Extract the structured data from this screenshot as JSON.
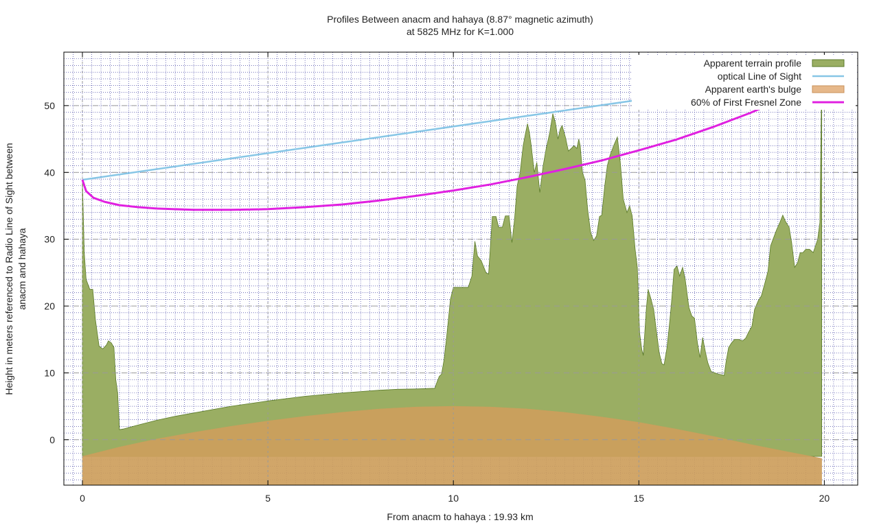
{
  "chart_data": {
    "type": "area",
    "title": "Profiles Between anacm and hahaya (8.87° magnetic azimuth)",
    "subtitle": "at 5825 MHz for K=1.000",
    "xlabel": "From anacm to hahaya : 19.93 km",
    "ylabel_line1": "Height in meters referenced to Radio Line of Sight between",
    "ylabel_line2": "anacm and hahaya",
    "xlim": [
      -0.5,
      20.9
    ],
    "ylim": [
      -6.8,
      58
    ],
    "x_ticks": [
      0,
      5,
      10,
      15,
      20
    ],
    "y_ticks": [
      0,
      10,
      20,
      30,
      40,
      50
    ],
    "grid": true,
    "legend_position": "top-right",
    "colors": {
      "terrain": "#9aae63",
      "terrain_stroke": "#5a7a28",
      "bulge": "#cd9e5c",
      "los": "#87c6e6",
      "fresnel": "#e020e0"
    },
    "series": [
      {
        "name": "Apparent terrain profile",
        "kind": "area",
        "points": [
          [
            0,
            -2.5
          ],
          [
            0,
            38.8
          ],
          [
            0.05,
            28
          ],
          [
            0.1,
            24
          ],
          [
            0.2,
            22.5
          ],
          [
            0.28,
            22.5
          ],
          [
            0.35,
            18
          ],
          [
            0.45,
            14
          ],
          [
            0.55,
            13.6
          ],
          [
            0.65,
            14.2
          ],
          [
            0.7,
            14.8
          ],
          [
            0.78,
            14.5
          ],
          [
            0.85,
            13.8
          ],
          [
            0.9,
            9
          ],
          [
            0.95,
            7
          ],
          [
            1.0,
            1.5
          ],
          [
            1.1,
            1.6
          ],
          [
            1.5,
            2.2
          ],
          [
            2,
            2.9
          ],
          [
            2.5,
            3.5
          ],
          [
            3,
            4
          ],
          [
            4,
            5
          ],
          [
            5,
            5.8
          ],
          [
            6,
            6.5
          ],
          [
            7,
            7
          ],
          [
            8,
            7.4
          ],
          [
            8.5,
            7.55
          ],
          [
            9,
            7.6
          ],
          [
            9.5,
            7.7
          ],
          [
            9.55,
            8.5
          ],
          [
            9.62,
            9.5
          ],
          [
            9.68,
            9.8
          ],
          [
            9.75,
            12
          ],
          [
            9.82,
            15.5
          ],
          [
            9.92,
            21
          ],
          [
            10.0,
            22.8
          ],
          [
            10.1,
            22.8
          ],
          [
            10.25,
            22.8
          ],
          [
            10.4,
            22.8
          ],
          [
            10.5,
            24.5
          ],
          [
            10.58,
            29.7
          ],
          [
            10.65,
            27.5
          ],
          [
            10.75,
            26.8
          ],
          [
            10.88,
            25
          ],
          [
            10.95,
            24.8
          ],
          [
            11.05,
            33.4
          ],
          [
            11.15,
            33.4
          ],
          [
            11.22,
            31.8
          ],
          [
            11.32,
            31.8
          ],
          [
            11.4,
            33.5
          ],
          [
            11.5,
            33.5
          ],
          [
            11.58,
            29.5
          ],
          [
            11.65,
            33
          ],
          [
            11.72,
            38
          ],
          [
            11.8,
            40
          ],
          [
            11.88,
            44
          ],
          [
            11.95,
            46
          ],
          [
            12.0,
            47.3
          ],
          [
            12.05,
            46
          ],
          [
            12.1,
            44
          ],
          [
            12.18,
            40
          ],
          [
            12.25,
            41.5
          ],
          [
            12.33,
            37
          ],
          [
            12.42,
            41
          ],
          [
            12.5,
            43.5
          ],
          [
            12.6,
            46
          ],
          [
            12.68,
            48.8
          ],
          [
            12.75,
            47.5
          ],
          [
            12.82,
            45
          ],
          [
            12.88,
            46.5
          ],
          [
            12.93,
            47
          ],
          [
            13.02,
            45.3
          ],
          [
            13.1,
            43.2
          ],
          [
            13.18,
            43.6
          ],
          [
            13.25,
            44
          ],
          [
            13.33,
            43.6
          ],
          [
            13.38,
            45
          ],
          [
            13.42,
            44
          ],
          [
            13.48,
            40
          ],
          [
            13.55,
            38.8
          ],
          [
            13.62,
            34.5
          ],
          [
            13.7,
            31
          ],
          [
            13.78,
            29.8
          ],
          [
            13.86,
            30.5
          ],
          [
            13.94,
            33.4
          ],
          [
            14.0,
            33.6
          ],
          [
            14.08,
            38
          ],
          [
            14.15,
            41
          ],
          [
            14.22,
            42.5
          ],
          [
            14.32,
            44
          ],
          [
            14.42,
            45.3
          ],
          [
            14.5,
            41.5
          ],
          [
            14.58,
            36
          ],
          [
            14.68,
            34
          ],
          [
            14.75,
            35
          ],
          [
            14.82,
            33.5
          ],
          [
            14.9,
            28.5
          ],
          [
            14.96,
            25.8
          ],
          [
            15.02,
            16
          ],
          [
            15.08,
            13.5
          ],
          [
            15.12,
            12.6
          ],
          [
            15.2,
            19.5
          ],
          [
            15.25,
            22.5
          ],
          [
            15.32,
            21.2
          ],
          [
            15.4,
            19.5
          ],
          [
            15.48,
            16
          ],
          [
            15.55,
            13
          ],
          [
            15.62,
            11.4
          ],
          [
            15.68,
            11.2
          ],
          [
            15.76,
            13.8
          ],
          [
            15.82,
            17
          ],
          [
            15.88,
            20.5
          ],
          [
            15.95,
            25.5
          ],
          [
            16.03,
            26
          ],
          [
            16.1,
            24.5
          ],
          [
            16.18,
            25.8
          ],
          [
            16.25,
            24
          ],
          [
            16.35,
            19.8
          ],
          [
            16.43,
            18.5
          ],
          [
            16.5,
            18.2
          ],
          [
            16.58,
            14.5
          ],
          [
            16.65,
            12.3
          ],
          [
            16.72,
            15.3
          ],
          [
            16.8,
            13
          ],
          [
            16.86,
            11.5
          ],
          [
            16.95,
            10.2
          ],
          [
            17.05,
            10
          ],
          [
            17.15,
            9.8
          ],
          [
            17.25,
            9.7
          ],
          [
            17.3,
            9.6
          ],
          [
            17.35,
            11.6
          ],
          [
            17.42,
            13.8
          ],
          [
            17.5,
            14.5
          ],
          [
            17.58,
            15
          ],
          [
            17.7,
            15
          ],
          [
            17.8,
            14.8
          ],
          [
            17.88,
            15.2
          ],
          [
            17.95,
            16
          ],
          [
            18.05,
            17
          ],
          [
            18.12,
            19.5
          ],
          [
            18.22,
            20.8
          ],
          [
            18.3,
            21.5
          ],
          [
            18.4,
            23.5
          ],
          [
            18.48,
            25.2
          ],
          [
            18.55,
            29
          ],
          [
            18.65,
            30.5
          ],
          [
            18.72,
            31.5
          ],
          [
            18.8,
            32.5
          ],
          [
            18.88,
            33.6
          ],
          [
            18.95,
            32.7
          ],
          [
            19.05,
            31.8
          ],
          [
            19.12,
            29.5
          ],
          [
            19.2,
            25.8
          ],
          [
            19.28,
            26.5
          ],
          [
            19.35,
            28
          ],
          [
            19.42,
            28
          ],
          [
            19.5,
            28.5
          ],
          [
            19.6,
            28.5
          ],
          [
            19.7,
            28
          ],
          [
            19.75,
            28.8
          ],
          [
            19.82,
            30
          ],
          [
            19.88,
            32.5
          ],
          [
            19.93,
            54.8
          ],
          [
            19.93,
            -2.5
          ]
        ]
      },
      {
        "name": "optical Line of Sight",
        "kind": "line",
        "points": [
          [
            0,
            38.9
          ],
          [
            19.93,
            54.8
          ]
        ]
      },
      {
        "name": "Apparent earth's bulge",
        "kind": "area",
        "points": [
          [
            0,
            -2.5
          ],
          [
            1,
            -1.1
          ],
          [
            2,
            0.1
          ],
          [
            3,
            1.1
          ],
          [
            4,
            2
          ],
          [
            5,
            2.8
          ],
          [
            6,
            3.5
          ],
          [
            7,
            4.1
          ],
          [
            8,
            4.6
          ],
          [
            9,
            4.9
          ],
          [
            10,
            5
          ],
          [
            11,
            4.9
          ],
          [
            12,
            4.6
          ],
          [
            13,
            4.1
          ],
          [
            14,
            3.4
          ],
          [
            15,
            2.6
          ],
          [
            16,
            1.6
          ],
          [
            17,
            0.5
          ],
          [
            18,
            -0.7
          ],
          [
            19,
            -1.8
          ],
          [
            19.93,
            -2.8
          ]
        ]
      },
      {
        "name": "60% of First Fresnel Zone",
        "kind": "line",
        "points": [
          [
            0,
            38.9
          ],
          [
            0.1,
            37.2
          ],
          [
            0.3,
            36.2
          ],
          [
            0.6,
            35.6
          ],
          [
            1,
            35.1
          ],
          [
            1.5,
            34.8
          ],
          [
            2,
            34.6
          ],
          [
            3,
            34.4
          ],
          [
            4,
            34.4
          ],
          [
            5,
            34.5
          ],
          [
            6,
            34.8
          ],
          [
            7,
            35.2
          ],
          [
            8,
            35.8
          ],
          [
            9,
            36.5
          ],
          [
            10,
            37.3
          ],
          [
            11,
            38.2
          ],
          [
            12,
            39.3
          ],
          [
            13,
            40.5
          ],
          [
            14,
            41.8
          ],
          [
            15,
            43.3
          ],
          [
            16,
            44.9
          ],
          [
            17,
            46.8
          ],
          [
            18,
            48.9
          ],
          [
            18.5,
            50.1
          ],
          [
            19,
            51.5
          ],
          [
            19.3,
            52.4
          ],
          [
            19.6,
            53.4
          ],
          [
            19.8,
            54.2
          ],
          [
            19.93,
            54.8
          ]
        ]
      }
    ]
  }
}
